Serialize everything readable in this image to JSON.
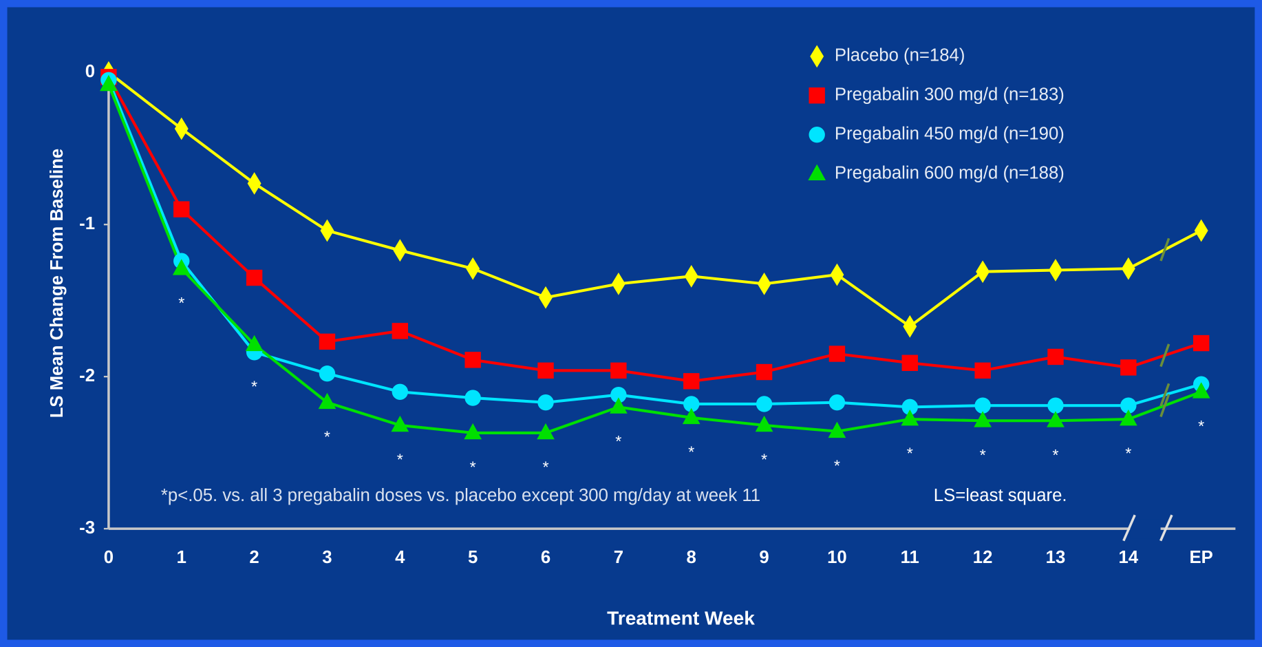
{
  "chart_data": {
    "type": "line",
    "y_label": "LS Mean Change From Baseline",
    "x_label": "Treatment Week",
    "categories": [
      "0",
      "1",
      "2",
      "3",
      "4",
      "5",
      "6",
      "7",
      "8",
      "9",
      "10",
      "11",
      "12",
      "13",
      "14",
      "EP"
    ],
    "series": [
      {
        "name": "Placebo (n=184)",
        "color": "#ffff00",
        "marker": "diamond",
        "values": [
          0,
          -0.37,
          -0.73,
          -1.04,
          -1.17,
          -1.29,
          -1.48,
          -1.39,
          -1.34,
          -1.39,
          -1.33,
          -1.67,
          -1.31,
          -1.3,
          -1.29,
          -1.04
        ]
      },
      {
        "name": "Pregabalin 300 mg/d (n=183)",
        "color": "#ff0000",
        "marker": "square",
        "values": [
          -0.03,
          -0.9,
          -1.35,
          -1.77,
          -1.7,
          -1.89,
          -1.96,
          -1.96,
          -2.03,
          -1.97,
          -1.85,
          -1.91,
          -1.96,
          -1.87,
          -1.94,
          -1.78
        ]
      },
      {
        "name": "Pregabalin 450 mg/d (n=190)",
        "color": "#00e5ff",
        "marker": "circle",
        "values": [
          -0.05,
          -1.24,
          -1.84,
          -1.98,
          -2.1,
          -2.14,
          -2.17,
          -2.12,
          -2.18,
          -2.18,
          -2.17,
          -2.2,
          -2.19,
          -2.19,
          -2.19,
          -2.05
        ]
      },
      {
        "name": "Pregabalin 600 mg/d (n=188)",
        "color": "#00e000",
        "marker": "triangle",
        "values": [
          -0.08,
          -1.29,
          -1.79,
          -2.17,
          -2.32,
          -2.37,
          -2.37,
          -2.2,
          -2.27,
          -2.32,
          -2.36,
          -2.28,
          -2.29,
          -2.29,
          -2.28,
          -2.1
        ]
      }
    ],
    "significance": [
      null,
      "*",
      "*",
      "*",
      "*",
      "*",
      "*",
      "*",
      "*",
      "*",
      "*",
      "*",
      "*",
      "*",
      "*",
      "*"
    ],
    "footnote": "*p<.05. vs. all 3 pregabalin doses vs. placebo except 300 mg/day at week 11",
    "abbreviation": "LS=least square.",
    "ylim": [
      -3,
      0
    ],
    "yticks": [
      0,
      -1,
      -2,
      -3
    ],
    "grid": false
  }
}
